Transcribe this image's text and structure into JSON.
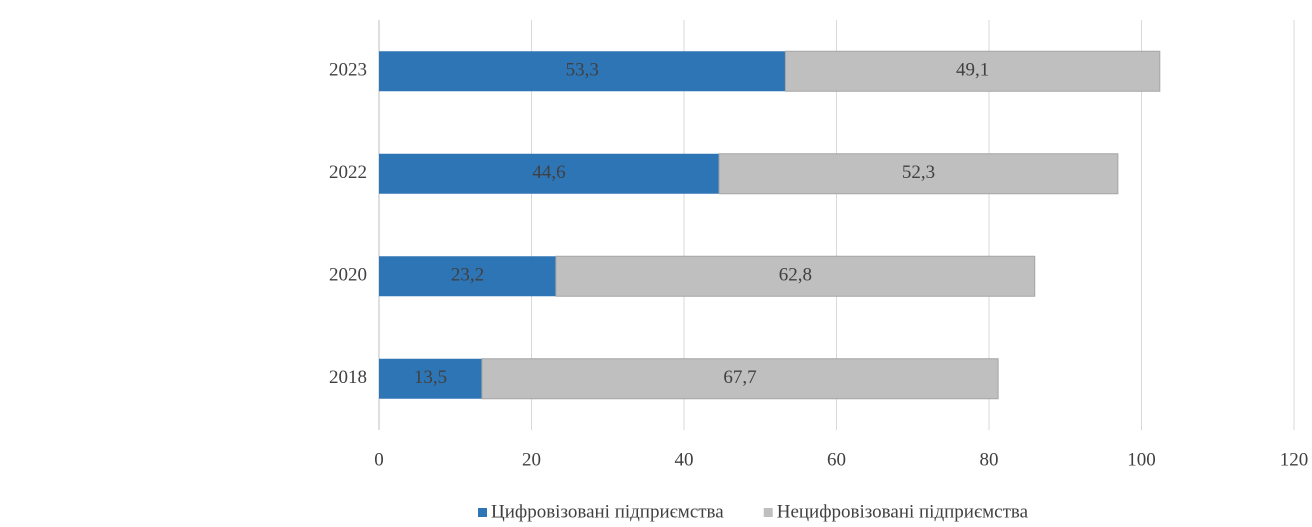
{
  "chart_data": {
    "type": "stacked-bar-horizontal",
    "categories": [
      "2023",
      "2022",
      "2020",
      "2018"
    ],
    "series": [
      {
        "name": "Цифровізовані підприємства",
        "color": "#2e75b6",
        "values": [
          53.3,
          44.6,
          23.2,
          13.5
        ],
        "value_labels": [
          "53,3",
          "44,6",
          "23,2",
          "13,5"
        ]
      },
      {
        "name": "Нецифровізовані підприємства",
        "color": "#bfbfbf",
        "values": [
          49.1,
          52.3,
          62.8,
          67.7
        ],
        "value_labels": [
          "49,1",
          "52,3",
          "62,8",
          "67,7"
        ]
      }
    ],
    "xlim": [
      0,
      120
    ],
    "xticks": [
      0,
      20,
      40,
      60,
      80,
      100,
      120
    ],
    "grid": true,
    "legend": "bottom"
  }
}
